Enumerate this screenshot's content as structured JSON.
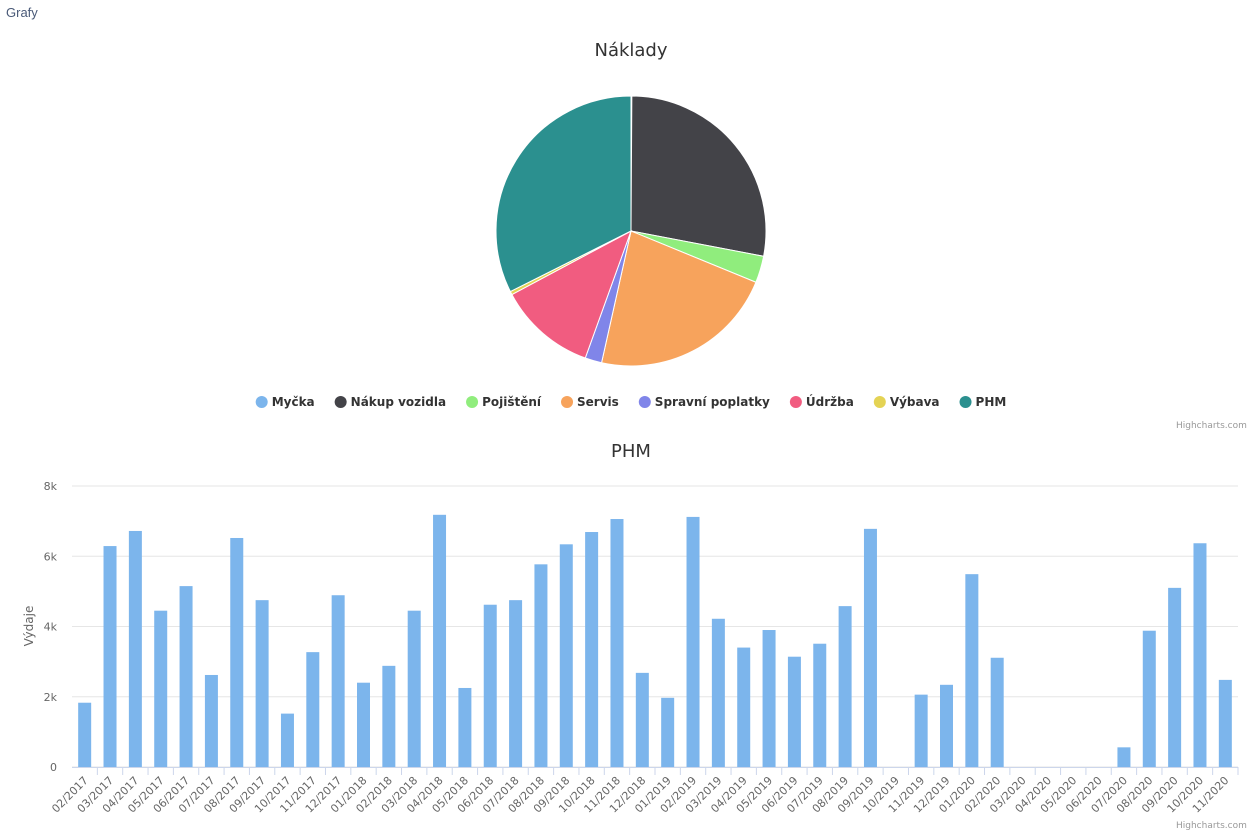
{
  "header": {
    "title": "Grafy"
  },
  "credits": "Highcharts.com",
  "chart_data": [
    {
      "type": "pie",
      "title": "Náklady",
      "legend_position": "bottom",
      "slices": [
        {
          "name": "Myčka",
          "value": 0.1,
          "color": "#7cb5ec"
        },
        {
          "name": "Nákup vozidla",
          "value": 27.9,
          "color": "#434348"
        },
        {
          "name": "Pojištění",
          "value": 3.2,
          "color": "#90ed7d"
        },
        {
          "name": "Servis",
          "value": 22.3,
          "color": "#f7a35c"
        },
        {
          "name": "Spravní poplatky",
          "value": 2.0,
          "color": "#8085e9"
        },
        {
          "name": "Údržba",
          "value": 11.7,
          "color": "#f15c80"
        },
        {
          "name": "Výbava",
          "value": 0.4,
          "color": "#e4d354"
        },
        {
          "name": "PHM",
          "value": 32.4,
          "color": "#2b908f"
        }
      ]
    },
    {
      "type": "bar",
      "title": "PHM",
      "ylabel": "Výdaje",
      "ylim": [
        0,
        8000
      ],
      "yticks": [
        "0",
        "2k",
        "4k",
        "6k",
        "8k"
      ],
      "grid": true,
      "color": "#7cb5ec",
      "categories": [
        "02/2017",
        "03/2017",
        "04/2017",
        "05/2017",
        "06/2017",
        "07/2017",
        "08/2017",
        "09/2017",
        "10/2017",
        "11/2017",
        "12/2017",
        "01/2018",
        "02/2018",
        "03/2018",
        "04/2018",
        "05/2018",
        "06/2018",
        "07/2018",
        "08/2018",
        "09/2018",
        "10/2018",
        "11/2018",
        "12/2018",
        "01/2019",
        "02/2019",
        "03/2019",
        "04/2019",
        "05/2019",
        "06/2019",
        "07/2019",
        "08/2019",
        "09/2019",
        "10/2019",
        "11/2019",
        "12/2019",
        "01/2020",
        "02/2020",
        "03/2020",
        "04/2020",
        "05/2020",
        "06/2020",
        "07/2020",
        "08/2020",
        "09/2020",
        "10/2020",
        "11/2020"
      ],
      "values": [
        1830,
        6290,
        6720,
        4450,
        5150,
        2620,
        6520,
        4750,
        1520,
        3270,
        4890,
        2400,
        2880,
        4450,
        7180,
        2250,
        4620,
        4750,
        5770,
        6340,
        6690,
        7060,
        2680,
        1970,
        7120,
        4220,
        3400,
        3900,
        3140,
        3510,
        4580,
        6780,
        0,
        2060,
        2340,
        5490,
        3110,
        0,
        0,
        0,
        0,
        560,
        3880,
        5100,
        6370,
        2480
      ]
    }
  ]
}
